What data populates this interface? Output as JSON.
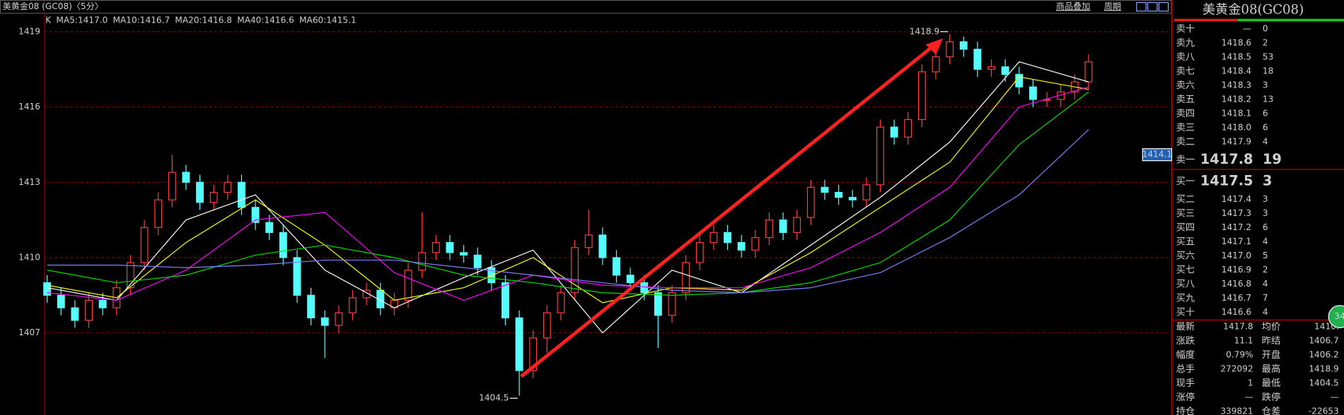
{
  "window_title": "美黄金08 (GC08)〈5分〉",
  "toolbar": [
    "商品叠加",
    "周期"
  ],
  "chart_data": {
    "type": "candlestick",
    "kline_label": "K",
    "ylim": [
      1403.9,
      1419.24
    ],
    "yticks": [
      1407,
      1410,
      1413,
      1416,
      1419
    ],
    "grid": true,
    "up_color": "#ff3c3c",
    "down_color": "#54fcfc",
    "ohlc": [
      [
        1409.0,
        1409.3,
        1408.2,
        1408.5
      ],
      [
        1408.5,
        1408.8,
        1407.7,
        1408.0
      ],
      [
        1408.0,
        1408.3,
        1407.2,
        1407.5
      ],
      [
        1407.5,
        1408.6,
        1407.2,
        1408.3
      ],
      [
        1408.3,
        1408.6,
        1407.7,
        1408.0
      ],
      [
        1408.0,
        1409.1,
        1407.7,
        1408.8
      ],
      [
        1408.8,
        1410.1,
        1408.5,
        1409.8
      ],
      [
        1409.8,
        1411.5,
        1409.5,
        1411.2
      ],
      [
        1411.2,
        1412.6,
        1410.9,
        1412.3
      ],
      [
        1412.3,
        1414.1,
        1412.0,
        1413.4
      ],
      [
        1413.4,
        1413.7,
        1412.7,
        1413.0
      ],
      [
        1413.0,
        1413.3,
        1411.9,
        1412.2
      ],
      [
        1412.2,
        1412.9,
        1411.9,
        1412.6
      ],
      [
        1412.6,
        1413.3,
        1412.3,
        1413.0
      ],
      [
        1413.0,
        1413.3,
        1411.7,
        1412.0
      ],
      [
        1412.0,
        1412.3,
        1411.1,
        1411.4
      ],
      [
        1411.4,
        1411.7,
        1410.7,
        1411.0
      ],
      [
        1411.0,
        1411.3,
        1409.7,
        1410.0
      ],
      [
        1410.0,
        1410.3,
        1408.2,
        1408.5
      ],
      [
        1408.5,
        1408.8,
        1407.3,
        1407.6
      ],
      [
        1407.6,
        1407.9,
        1406.0,
        1407.3
      ],
      [
        1407.3,
        1408.1,
        1407.0,
        1407.8
      ],
      [
        1407.8,
        1408.7,
        1407.5,
        1408.4
      ],
      [
        1408.4,
        1409.0,
        1408.1,
        1408.7
      ],
      [
        1408.7,
        1409.0,
        1407.7,
        1408.0
      ],
      [
        1408.0,
        1408.6,
        1407.7,
        1408.3
      ],
      [
        1408.3,
        1409.8,
        1408.0,
        1409.5
      ],
      [
        1409.5,
        1411.8,
        1409.2,
        1410.2
      ],
      [
        1410.2,
        1410.9,
        1409.9,
        1410.6
      ],
      [
        1410.6,
        1410.9,
        1409.9,
        1410.2
      ],
      [
        1410.2,
        1410.5,
        1409.8,
        1410.1
      ],
      [
        1410.1,
        1410.4,
        1409.3,
        1409.6
      ],
      [
        1409.6,
        1409.9,
        1408.7,
        1409.0
      ],
      [
        1409.0,
        1409.3,
        1407.3,
        1407.6
      ],
      [
        1407.6,
        1407.9,
        1404.5,
        1405.5
      ],
      [
        1405.5,
        1407.1,
        1405.2,
        1406.8
      ],
      [
        1406.8,
        1408.1,
        1406.2,
        1407.8
      ],
      [
        1407.8,
        1408.9,
        1407.5,
        1408.6
      ],
      [
        1408.6,
        1410.7,
        1408.3,
        1410.4
      ],
      [
        1410.4,
        1411.9,
        1410.1,
        1410.9
      ],
      [
        1410.9,
        1411.2,
        1409.7,
        1410.0
      ],
      [
        1410.0,
        1410.3,
        1409.0,
        1409.3
      ],
      [
        1409.3,
        1409.6,
        1408.7,
        1409.0
      ],
      [
        1409.0,
        1409.3,
        1408.3,
        1408.6
      ],
      [
        1408.6,
        1408.9,
        1406.4,
        1407.7
      ],
      [
        1407.7,
        1408.9,
        1407.4,
        1408.6
      ],
      [
        1408.6,
        1410.1,
        1408.3,
        1409.8
      ],
      [
        1409.8,
        1410.9,
        1409.5,
        1410.6
      ],
      [
        1410.6,
        1411.3,
        1410.3,
        1411.0
      ],
      [
        1411.0,
        1411.3,
        1410.3,
        1410.6
      ],
      [
        1410.6,
        1410.9,
        1410.0,
        1410.3
      ],
      [
        1410.3,
        1411.1,
        1410.0,
        1410.8
      ],
      [
        1410.8,
        1411.8,
        1410.5,
        1411.5
      ],
      [
        1411.5,
        1411.8,
        1410.7,
        1411.0
      ],
      [
        1411.0,
        1411.9,
        1410.7,
        1411.6
      ],
      [
        1411.6,
        1413.1,
        1411.3,
        1412.8
      ],
      [
        1412.8,
        1413.1,
        1412.3,
        1412.6
      ],
      [
        1412.6,
        1412.9,
        1412.1,
        1412.4
      ],
      [
        1412.4,
        1412.7,
        1412.0,
        1412.3
      ],
      [
        1412.3,
        1413.2,
        1412.0,
        1412.9
      ],
      [
        1412.9,
        1415.5,
        1412.6,
        1415.2
      ],
      [
        1415.2,
        1415.5,
        1414.5,
        1414.8
      ],
      [
        1414.8,
        1415.8,
        1414.5,
        1415.5
      ],
      [
        1415.5,
        1417.7,
        1415.2,
        1417.4
      ],
      [
        1417.4,
        1418.3,
        1417.1,
        1418.0
      ],
      [
        1418.0,
        1418.9,
        1417.7,
        1418.6
      ],
      [
        1418.6,
        1418.8,
        1418.0,
        1418.3
      ],
      [
        1418.3,
        1418.6,
        1417.2,
        1417.5
      ],
      [
        1417.5,
        1417.9,
        1417.2,
        1417.6
      ],
      [
        1417.6,
        1417.9,
        1417.0,
        1417.3
      ],
      [
        1417.3,
        1417.6,
        1416.5,
        1416.8
      ],
      [
        1416.8,
        1417.1,
        1416.0,
        1416.3
      ],
      [
        1416.3,
        1416.6,
        1416.0,
        1416.3
      ],
      [
        1416.3,
        1416.9,
        1416.0,
        1416.6
      ],
      [
        1416.6,
        1417.3,
        1416.3,
        1417.0
      ],
      [
        1417.0,
        1418.1,
        1416.7,
        1417.8
      ]
    ],
    "series": [
      {
        "label": "MA5:1417.0",
        "color": "#ffffff",
        "values": [
          1408.8,
          1408.3,
          1411.5,
          1412.5,
          1409.5,
          1408.0,
          1409.2,
          1410.3,
          1407.0,
          1409.5,
          1408.6,
          1410.5,
          1412.4,
          1414.6,
          1417.8,
          1417.0
        ]
      },
      {
        "label": "MA10:1416.7",
        "color": "#ffff00",
        "values": [
          1408.9,
          1408.4,
          1410.6,
          1412.3,
          1410.5,
          1408.3,
          1408.8,
          1410.0,
          1408.2,
          1408.8,
          1408.7,
          1410.2,
          1412.0,
          1413.8,
          1417.2,
          1416.7
        ]
      },
      {
        "label": "MA20:1416.8",
        "color": "#ff00ff",
        "values": [
          1408.6,
          1408.3,
          1409.5,
          1411.5,
          1411.8,
          1409.4,
          1408.3,
          1409.3,
          1408.9,
          1408.8,
          1408.8,
          1409.6,
          1411.0,
          1412.8,
          1416.0,
          1416.8
        ]
      },
      {
        "label": "MA40:1416.6",
        "color": "#00e000",
        "values": [
          1409.5,
          1409.0,
          1409.3,
          1410.1,
          1410.5,
          1410.0,
          1409.3,
          1409.0,
          1408.6,
          1408.5,
          1408.6,
          1409.0,
          1409.8,
          1411.5,
          1414.5,
          1416.6
        ]
      },
      {
        "label": "MA60:1415.1",
        "color": "#8080ff",
        "values": [
          1409.7,
          1409.7,
          1409.6,
          1409.7,
          1409.9,
          1409.9,
          1409.6,
          1409.3,
          1409.0,
          1408.7,
          1408.6,
          1408.8,
          1409.4,
          1410.8,
          1412.5,
          1415.1
        ]
      }
    ],
    "high_label": 1418.9,
    "low_label": 1404.5,
    "price_tag": 1414.1
  },
  "quote": {
    "title": "美黄金08(GC08)",
    "asks": [
      [
        "卖十",
        "—",
        "0"
      ],
      [
        "卖九",
        "1418.6",
        "2"
      ],
      [
        "卖八",
        "1418.5",
        "53"
      ],
      [
        "卖七",
        "1418.4",
        "18"
      ],
      [
        "卖六",
        "1418.3",
        "3"
      ],
      [
        "卖五",
        "1418.2",
        "13"
      ],
      [
        "卖四",
        "1418.1",
        "6"
      ],
      [
        "卖三",
        "1418.0",
        "6"
      ],
      [
        "卖二",
        "1417.9",
        "4"
      ],
      [
        "卖一",
        "1417.8",
        "19"
      ]
    ],
    "bids": [
      [
        "买一",
        "1417.5",
        "3"
      ],
      [
        "买二",
        "1417.4",
        "3"
      ],
      [
        "买三",
        "1417.3",
        "3"
      ],
      [
        "买四",
        "1417.2",
        "6"
      ],
      [
        "买五",
        "1417.1",
        "4"
      ],
      [
        "买六",
        "1417.0",
        "5"
      ],
      [
        "买七",
        "1416.9",
        "2"
      ],
      [
        "买八",
        "1416.8",
        "4"
      ],
      [
        "买九",
        "1416.7",
        "7"
      ],
      [
        "买十",
        "1416.6",
        "4"
      ]
    ],
    "stats": [
      [
        {
          "label": "最新",
          "value": "1417.8",
          "color": "#ff4040"
        },
        {
          "label": "均价",
          "value": "1410.",
          "color": "#ff4040"
        }
      ],
      [
        {
          "label": "涨跌",
          "value": "11.1",
          "color": "#ff4040"
        },
        {
          "label": "昨结",
          "value": "1406.7",
          "color": "#ffffff"
        }
      ],
      [
        {
          "label": "幅度",
          "value": "0.79%",
          "color": "#ff4040"
        },
        {
          "label": "开盘",
          "value": "1406.2",
          "color": "#40ff40"
        }
      ],
      [
        {
          "label": "总手",
          "value": "272092",
          "color": "#ffff00"
        },
        {
          "label": "最高",
          "value": "1418.9",
          "color": "#ff4040"
        }
      ],
      [
        {
          "label": "现手",
          "value": "1",
          "color": "#ffff00"
        },
        {
          "label": "最低",
          "value": "1404.5",
          "color": "#40ff40"
        }
      ],
      [
        {
          "label": "涨停",
          "value": "—",
          "color": "#ffffff"
        },
        {
          "label": "跌停",
          "value": "—",
          "color": "#ffffff"
        }
      ],
      [
        {
          "label": "持仓",
          "value": "339821",
          "color": "#ffff00"
        },
        {
          "label": "仓差",
          "value": "-22653",
          "color": "#ffffff"
        }
      ]
    ],
    "badge": "34"
  }
}
